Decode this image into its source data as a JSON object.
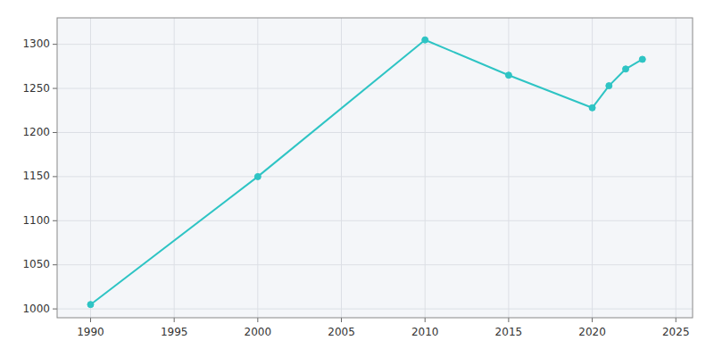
{
  "chart_data": {
    "type": "line",
    "x": [
      1990,
      2000,
      2010,
      2015,
      2020,
      2021,
      2022,
      2023
    ],
    "values": [
      1005,
      1150,
      1305,
      1265,
      1228,
      1253,
      1272,
      1283
    ],
    "color": "#2ec4c4",
    "marker": "circle",
    "line_style": "solid",
    "xlim": [
      1988,
      2026
    ],
    "ylim": [
      990,
      1330
    ],
    "xticks": [
      1990,
      1995,
      2000,
      2005,
      2010,
      2015,
      2020,
      2025
    ],
    "yticks": [
      1000,
      1050,
      1100,
      1150,
      1200,
      1250,
      1300
    ],
    "grid": true
  }
}
